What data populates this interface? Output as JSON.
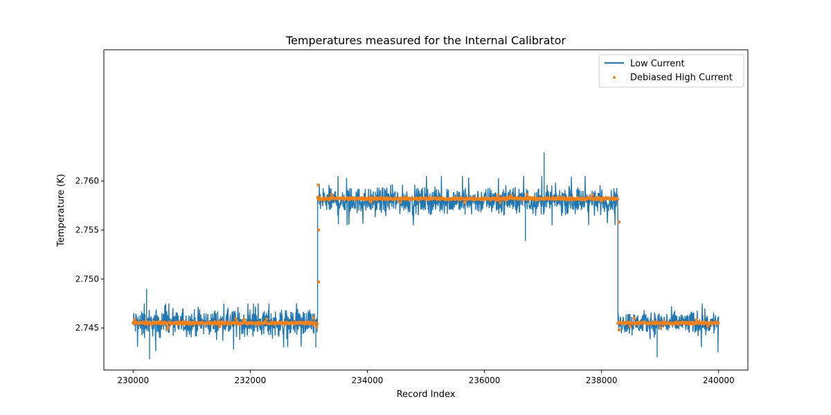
{
  "chart_data": {
    "type": "line",
    "title": "Temperatures measured for the Internal Calibrator",
    "xlabel": "Record Index",
    "ylabel": "Temperature (K)",
    "xlim": [
      229500,
      240500
    ],
    "ylim": [
      2.7407,
      2.7734
    ],
    "x_ticks": [
      230000,
      232000,
      234000,
      236000,
      238000,
      240000
    ],
    "x_tick_labels": [
      "230000",
      "232000",
      "234000",
      "236000",
      "238000",
      "240000"
    ],
    "y_ticks": [
      2.745,
      2.75,
      2.755,
      2.76
    ],
    "y_tick_labels": [
      "2.745",
      "2.750",
      "2.755",
      "2.760"
    ],
    "grid": false,
    "legend_position": "top-right",
    "x_range": [
      230000,
      240000
    ],
    "segments": [
      {
        "x_start": 230000,
        "x_end": 233150,
        "low_mean": 2.7455,
        "low_min": 2.7425,
        "low_max": 2.7475,
        "high_mean": 2.7455
      },
      {
        "x_start": 233150,
        "x_end": 238280,
        "low_mean": 2.758,
        "low_min": 2.7555,
        "low_max": 2.7605,
        "high_mean": 2.7582
      },
      {
        "x_start": 238280,
        "x_end": 240000,
        "low_mean": 2.7455,
        "low_min": 2.743,
        "low_max": 2.7475,
        "high_mean": 2.7455
      }
    ],
    "low_spikes": [
      {
        "x": 230230,
        "y": 2.749
      },
      {
        "x": 230280,
        "y": 2.7418
      },
      {
        "x": 237020,
        "y": 2.7629
      },
      {
        "x": 236700,
        "y": 2.7539
      },
      {
        "x": 238950,
        "y": 2.742
      },
      {
        "x": 233120,
        "y": 2.743
      },
      {
        "x": 239990,
        "y": 2.7425
      }
    ],
    "high_outliers": [
      {
        "x": 233160,
        "y": 2.7596
      },
      {
        "x": 233170,
        "y": 2.755
      },
      {
        "x": 233170,
        "y": 2.7497
      },
      {
        "x": 238300,
        "y": 2.7558
      },
      {
        "x": 238300,
        "y": 2.7448
      }
    ],
    "series": [
      {
        "name": "Low Current",
        "style": "line",
        "color": "#1f77b4"
      },
      {
        "name": "Debiased High Current",
        "style": "scatter",
        "color": "#ff7f0e"
      }
    ]
  }
}
